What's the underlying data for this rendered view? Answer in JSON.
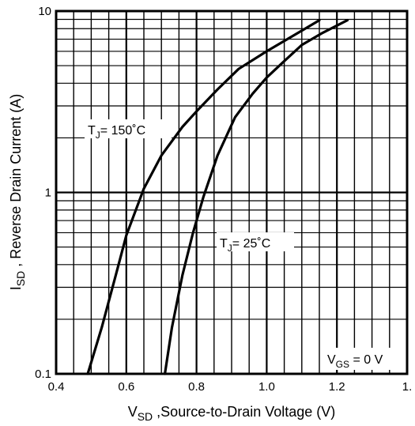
{
  "chart_data": {
    "type": "line",
    "title": "",
    "xlabel_main": "V",
    "xlabel_sub": "SD",
    "xlabel_rest": " ,Source-to-Drain Voltage (V)",
    "ylabel_main": "I",
    "ylabel_sub": "SD",
    "ylabel_rest": " , Reverse Drain Current (A)",
    "xlim": [
      0.4,
      1.4
    ],
    "ylim": [
      0.1,
      10
    ],
    "y_scale": "log",
    "grid": true,
    "x_ticks": [
      "0.4",
      "0.6",
      "0.8",
      "1.0",
      "1.2",
      "1."
    ],
    "y_ticks": [
      "0.1",
      "1",
      "10"
    ],
    "series": [
      {
        "x": [
          0.49,
          0.53,
          0.57,
          0.6,
          0.65,
          0.7,
          0.76,
          0.8,
          0.86,
          0.92,
          1.0,
          1.08,
          1.15
        ],
        "y": [
          0.1,
          0.18,
          0.35,
          0.58,
          1.05,
          1.6,
          2.3,
          2.8,
          3.7,
          4.8,
          6.0,
          7.4,
          8.9
        ]
      },
      {
        "x": [
          0.71,
          0.73,
          0.76,
          0.79,
          0.82,
          0.86,
          0.91,
          0.96,
          1.0,
          1.05,
          1.1,
          1.16,
          1.23
        ],
        "y": [
          0.1,
          0.18,
          0.35,
          0.6,
          0.95,
          1.6,
          2.6,
          3.5,
          4.3,
          5.3,
          6.5,
          7.6,
          8.9
        ]
      }
    ],
    "annotations": {
      "tj150": {
        "main": "T",
        "sub": "J",
        "rest": "= 150˚C"
      },
      "tj25": {
        "main": "T",
        "sub": "J",
        "rest": "= 25˚C"
      },
      "vgs": {
        "main": "V",
        "sub": "GS",
        "rest": " = 0 V"
      }
    }
  }
}
